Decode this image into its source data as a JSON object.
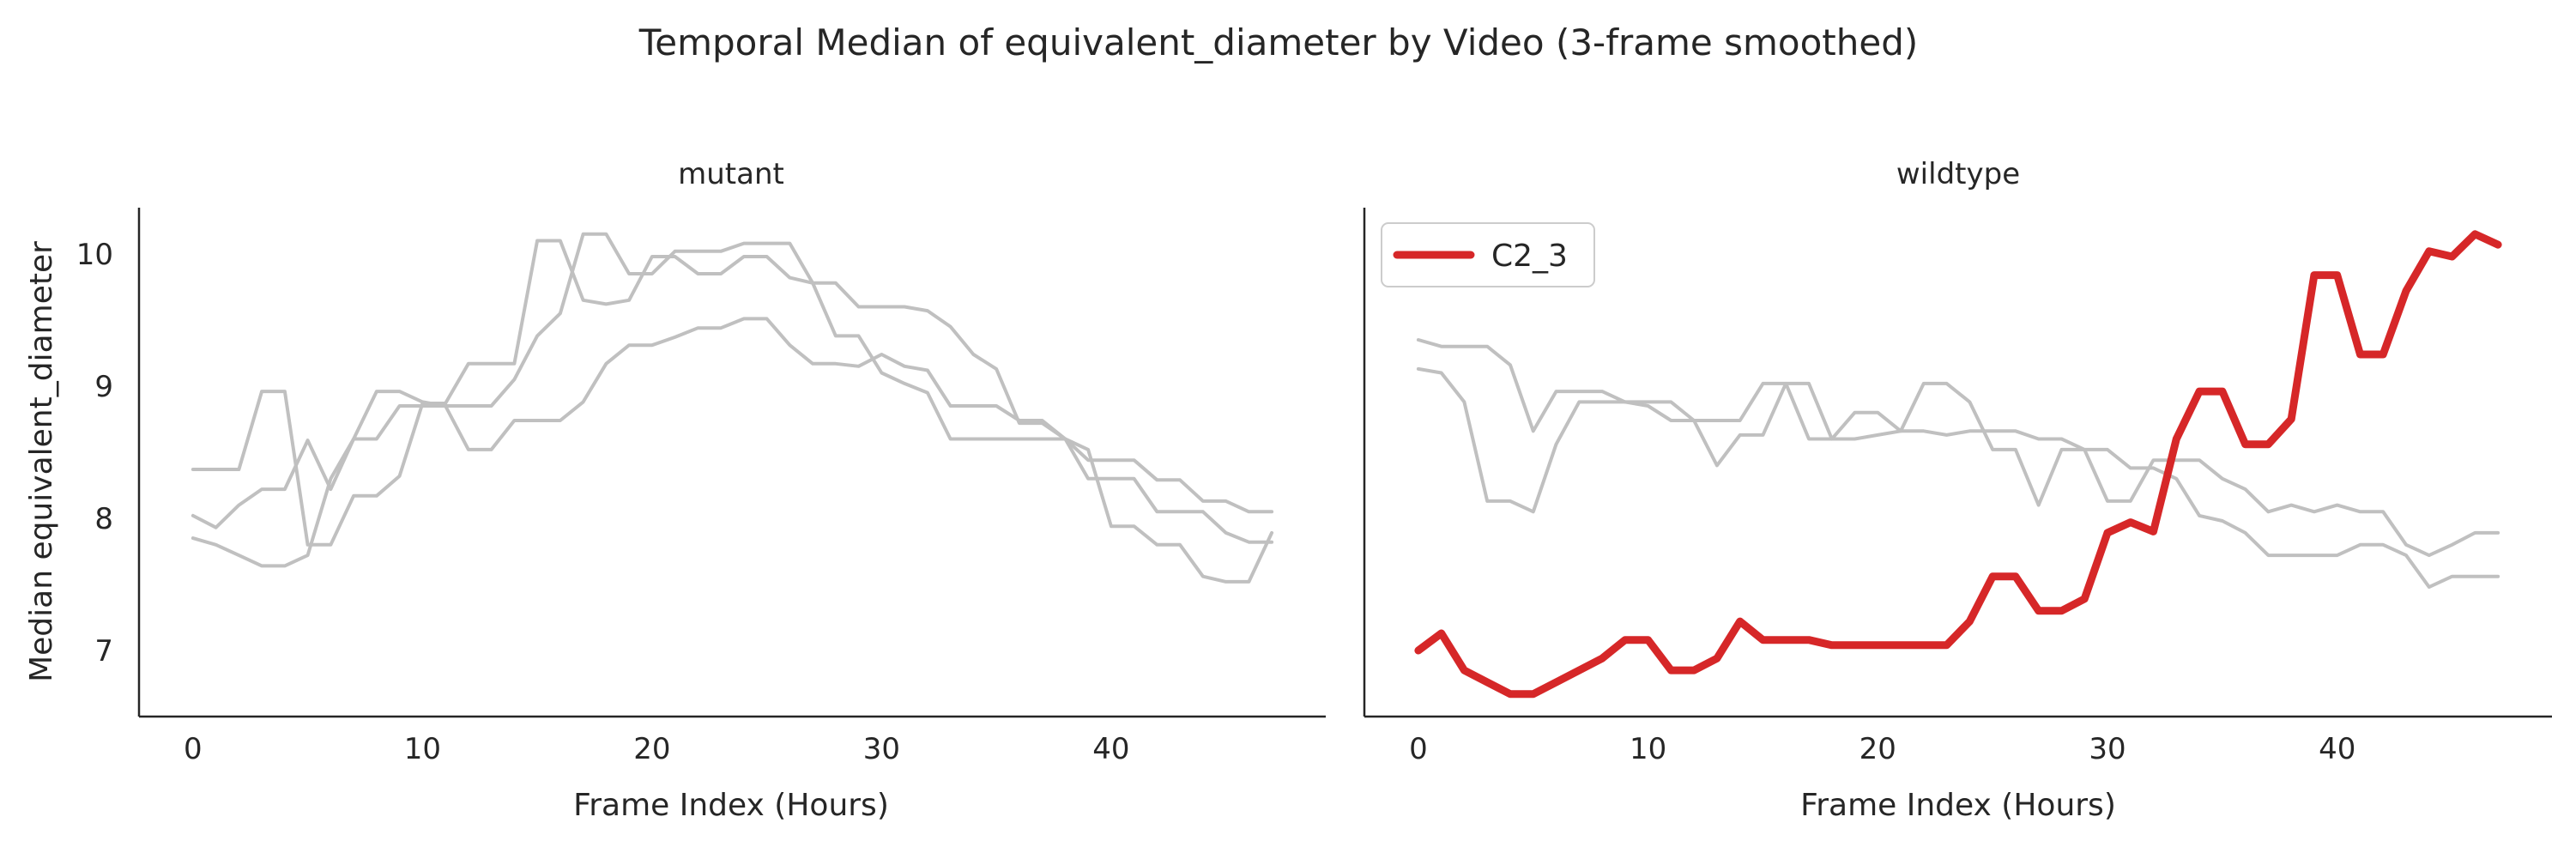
{
  "chart_data": {
    "type": "line",
    "title": "Temporal Median of equivalent_diameter by Video (3-frame smoothed)",
    "ylabel": "Median equivalent_diameter",
    "shared_ylim": [
      6.5,
      10.35
    ],
    "yticks": [
      7,
      8,
      9,
      10
    ],
    "grid": false,
    "colors": {
      "background": "#ffffff",
      "axis": "#262626",
      "text": "#262626",
      "other_series": "#c0c0c0",
      "highlight": "#d62728"
    },
    "panels": [
      {
        "title": "mutant",
        "xlabel": "Frame Index (Hours)",
        "xlim": [
          -2.35,
          49.35
        ],
        "xticks": [
          0,
          10,
          20,
          30,
          40
        ],
        "legend": null,
        "series": [
          {
            "highlight": false,
            "x": [
              0,
              1,
              2,
              3,
              4,
              5,
              6,
              7,
              8,
              9,
              10,
              11,
              12,
              13,
              14,
              15,
              16,
              17,
              18,
              19,
              20,
              21,
              22,
              23,
              24,
              25,
              26,
              27,
              28,
              29,
              30,
              31,
              32,
              33,
              34,
              35,
              36,
              37,
              38,
              39,
              40,
              41,
              42,
              43,
              44,
              45,
              46,
              47
            ],
            "values": [
              8.37,
              8.37,
              8.37,
              8.96,
              8.96,
              7.8,
              7.8,
              8.17,
              8.17,
              8.32,
              8.87,
              8.87,
              9.17,
              9.17,
              9.17,
              10.1,
              10.1,
              9.65,
              9.62,
              9.65,
              9.98,
              9.98,
              9.85,
              9.85,
              9.98,
              9.98,
              9.82,
              9.78,
              9.78,
              9.6,
              9.6,
              9.6,
              9.57,
              9.45,
              9.24,
              9.13,
              8.72,
              8.72,
              8.6,
              8.44,
              8.44,
              8.44,
              8.29,
              8.29,
              8.13,
              8.13,
              8.05,
              8.05
            ]
          },
          {
            "highlight": false,
            "x": [
              0,
              1,
              2,
              3,
              4,
              5,
              6,
              7,
              8,
              9,
              10,
              11,
              12,
              13,
              14,
              15,
              16,
              17,
              18,
              19,
              20,
              21,
              22,
              23,
              24,
              25,
              26,
              27,
              28,
              29,
              30,
              31,
              32,
              33,
              34,
              35,
              36,
              37,
              38,
              39,
              40,
              41,
              42,
              43,
              44,
              45,
              46,
              47
            ],
            "values": [
              8.02,
              7.93,
              8.1,
              8.22,
              8.22,
              8.59,
              8.22,
              8.6,
              8.6,
              8.85,
              8.85,
              8.85,
              8.52,
              8.52,
              8.74,
              8.74,
              8.74,
              8.88,
              9.17,
              9.31,
              9.31,
              9.37,
              9.44,
              9.44,
              9.51,
              9.51,
              9.31,
              9.17,
              9.17,
              9.15,
              9.24,
              9.15,
              9.12,
              8.85,
              8.85,
              8.85,
              8.74,
              8.74,
              8.6,
              8.3,
              8.3,
              8.3,
              8.05,
              8.05,
              8.05,
              7.89,
              7.82,
              7.82
            ]
          },
          {
            "highlight": false,
            "x": [
              0,
              1,
              2,
              3,
              4,
              5,
              6,
              7,
              8,
              9,
              10,
              11,
              12,
              13,
              14,
              15,
              16,
              17,
              18,
              19,
              20,
              21,
              22,
              23,
              24,
              25,
              26,
              27,
              28,
              29,
              30,
              31,
              32,
              33,
              34,
              35,
              36,
              37,
              38,
              39,
              40,
              41,
              42,
              43,
              44,
              45,
              46,
              47
            ],
            "values": [
              7.85,
              7.8,
              7.72,
              7.64,
              7.64,
              7.72,
              8.3,
              8.6,
              8.96,
              8.96,
              8.88,
              8.85,
              8.85,
              8.85,
              9.05,
              9.38,
              9.55,
              10.15,
              10.15,
              9.85,
              9.85,
              10.02,
              10.02,
              10.02,
              10.08,
              10.08,
              10.08,
              9.78,
              9.38,
              9.38,
              9.1,
              9.02,
              8.95,
              8.6,
              8.6,
              8.6,
              8.6,
              8.6,
              8.6,
              8.52,
              7.94,
              7.94,
              7.8,
              7.8,
              7.56,
              7.52,
              7.52,
              7.89
            ]
          }
        ]
      },
      {
        "title": "wildtype",
        "xlabel": "Frame Index (Hours)",
        "xlim": [
          -2.35,
          49.35
        ],
        "xticks": [
          0,
          10,
          20,
          30,
          40
        ],
        "legend": {
          "location": "upper left",
          "entries": [
            "C2_3"
          ]
        },
        "series": [
          {
            "highlight": false,
            "x": [
              0,
              1,
              2,
              3,
              4,
              5,
              6,
              7,
              8,
              9,
              10,
              11,
              12,
              13,
              14,
              15,
              16,
              17,
              18,
              19,
              20,
              21,
              22,
              23,
              24,
              25,
              26,
              27,
              28,
              29,
              30,
              31,
              32,
              33,
              34,
              35,
              36,
              37,
              38,
              39,
              40,
              41,
              42,
              43,
              44,
              45,
              46,
              47
            ],
            "values": [
              9.35,
              9.3,
              9.3,
              9.3,
              9.16,
              8.66,
              8.96,
              8.96,
              8.96,
              8.88,
              8.88,
              8.88,
              8.74,
              8.74,
              8.74,
              9.02,
              9.02,
              9.02,
              8.6,
              8.8,
              8.8,
              8.66,
              9.02,
              9.02,
              8.88,
              8.52,
              8.52,
              8.1,
              8.52,
              8.52,
              8.13,
              8.13,
              8.44,
              8.44,
              8.44,
              8.3,
              8.22,
              8.05,
              8.1,
              8.05,
              8.1,
              8.05,
              8.05,
              7.8,
              7.72,
              7.8,
              7.89,
              7.89
            ]
          },
          {
            "highlight": false,
            "x": [
              0,
              1,
              2,
              3,
              4,
              5,
              6,
              7,
              8,
              9,
              10,
              11,
              12,
              13,
              14,
              15,
              16,
              17,
              18,
              19,
              20,
              21,
              22,
              23,
              24,
              25,
              26,
              27,
              28,
              29,
              30,
              31,
              32,
              33,
              34,
              35,
              36,
              37,
              38,
              39,
              40,
              41,
              42,
              43,
              44,
              45,
              46,
              47
            ],
            "values": [
              9.13,
              9.1,
              8.88,
              8.13,
              8.13,
              8.05,
              8.56,
              8.88,
              8.88,
              8.88,
              8.85,
              8.74,
              8.74,
              8.4,
              8.63,
              8.63,
              9.02,
              8.6,
              8.6,
              8.6,
              8.63,
              8.66,
              8.66,
              8.63,
              8.66,
              8.66,
              8.66,
              8.6,
              8.6,
              8.52,
              8.52,
              8.38,
              8.38,
              8.3,
              8.02,
              7.98,
              7.89,
              7.72,
              7.72,
              7.72,
              7.72,
              7.8,
              7.8,
              7.72,
              7.48,
              7.56,
              7.56,
              7.56
            ]
          },
          {
            "highlight": true,
            "name": "C2_3",
            "x": [
              0,
              1,
              2,
              3,
              4,
              5,
              6,
              7,
              8,
              9,
              10,
              11,
              12,
              13,
              14,
              15,
              16,
              17,
              18,
              19,
              20,
              21,
              22,
              23,
              24,
              25,
              26,
              27,
              28,
              29,
              30,
              31,
              32,
              33,
              34,
              35,
              36,
              37,
              38,
              39,
              40,
              41,
              42,
              43,
              44,
              45,
              46,
              47
            ],
            "values": [
              7.0,
              7.13,
              6.85,
              6.76,
              6.67,
              6.67,
              6.76,
              6.85,
              6.94,
              7.08,
              7.08,
              6.85,
              6.85,
              6.94,
              7.22,
              7.08,
              7.08,
              7.08,
              7.04,
              7.04,
              7.04,
              7.04,
              7.04,
              7.04,
              7.22,
              7.56,
              7.56,
              7.3,
              7.3,
              7.39,
              7.89,
              7.97,
              7.9,
              8.6,
              8.96,
              8.96,
              8.56,
              8.56,
              8.75,
              9.84,
              9.84,
              9.24,
              9.24,
              9.72,
              10.02,
              9.98,
              10.15,
              10.07
            ]
          }
        ]
      }
    ]
  }
}
